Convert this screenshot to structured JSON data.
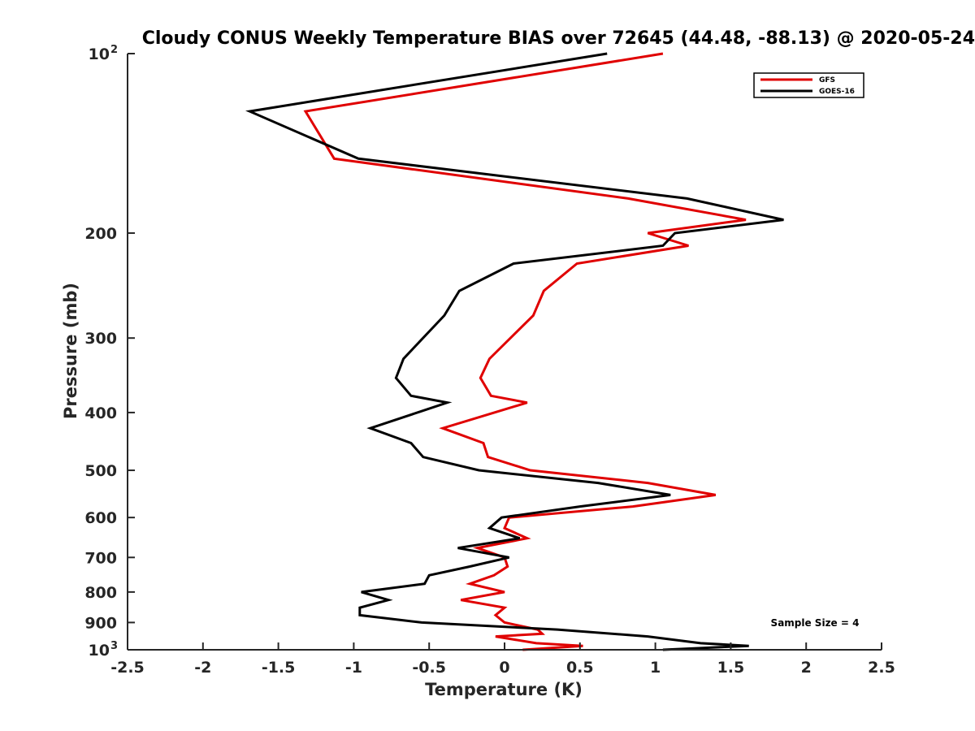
{
  "chart_data": {
    "type": "line",
    "title": "Cloudy CONUS Weekly Temperature BIAS over 72645 (44.48, -88.13) @ 2020-05-24",
    "xlabel": "Temperature (K)",
    "ylabel": "Pressure (mb)",
    "xlim": [
      -2.5,
      2.5
    ],
    "ylim": [
      100,
      1000
    ],
    "y_scale": "log",
    "y_reversed": true,
    "grid": false,
    "x_ticks": [
      "-2.5",
      "-2",
      "-1.5",
      "-1",
      "-0.5",
      "0",
      "0.5",
      "1",
      "1.5",
      "2",
      "2.5"
    ],
    "y_ticks": [
      {
        "label": "10",
        "sup": "2",
        "value": 100
      },
      {
        "label": "200",
        "value": 200
      },
      {
        "label": "300",
        "value": 300
      },
      {
        "label": "400",
        "value": 400
      },
      {
        "label": "500",
        "value": 500
      },
      {
        "label": "600",
        "value": 600
      },
      {
        "label": "700",
        "value": 700
      },
      {
        "label": "800",
        "value": 800
      },
      {
        "label": "900",
        "value": 900
      },
      {
        "label": "10",
        "sup": "3",
        "value": 1000
      }
    ],
    "legend_position": "top-right",
    "annotation": "Sample Size = 4",
    "series": [
      {
        "name": "GFS",
        "color": "#e00000",
        "points": [
          [
            1.05,
            100
          ],
          [
            -1.32,
            125
          ],
          [
            -1.13,
            150
          ],
          [
            0.82,
            175
          ],
          [
            1.6,
            190
          ],
          [
            0.95,
            200
          ],
          [
            1.22,
            210
          ],
          [
            0.48,
            225
          ],
          [
            0.26,
            250
          ],
          [
            0.19,
            275
          ],
          [
            -0.1,
            325
          ],
          [
            -0.16,
            350
          ],
          [
            -0.09,
            375
          ],
          [
            0.15,
            385
          ],
          [
            -0.41,
            425
          ],
          [
            -0.14,
            450
          ],
          [
            -0.11,
            475
          ],
          [
            0.17,
            500
          ],
          [
            0.95,
            525
          ],
          [
            1.4,
            550
          ],
          [
            0.85,
            575
          ],
          [
            0.03,
            600
          ],
          [
            0.0,
            625
          ],
          [
            0.15,
            650
          ],
          [
            -0.18,
            675
          ],
          [
            0.0,
            700
          ],
          [
            0.02,
            725
          ],
          [
            -0.07,
            750
          ],
          [
            -0.23,
            775
          ],
          [
            0.0,
            800
          ],
          [
            -0.29,
            825
          ],
          [
            0.0,
            850
          ],
          [
            -0.06,
            875
          ],
          [
            0.0,
            900
          ],
          [
            0.22,
            925
          ],
          [
            0.25,
            940
          ],
          [
            -0.06,
            950
          ],
          [
            0.21,
            975
          ],
          [
            0.52,
            985
          ],
          [
            0.12,
            1000
          ]
        ]
      },
      {
        "name": "GOES-16",
        "color": "#000000",
        "points": [
          [
            0.68,
            100
          ],
          [
            -1.69,
            125
          ],
          [
            -0.97,
            150
          ],
          [
            1.21,
            175
          ],
          [
            1.85,
            190
          ],
          [
            1.13,
            200
          ],
          [
            1.05,
            210
          ],
          [
            0.06,
            225
          ],
          [
            -0.3,
            250
          ],
          [
            -0.4,
            275
          ],
          [
            -0.67,
            325
          ],
          [
            -0.72,
            350
          ],
          [
            -0.62,
            375
          ],
          [
            -0.38,
            385
          ],
          [
            -0.89,
            425
          ],
          [
            -0.62,
            450
          ],
          [
            -0.54,
            475
          ],
          [
            -0.17,
            500
          ],
          [
            0.62,
            525
          ],
          [
            1.1,
            550
          ],
          [
            0.5,
            575
          ],
          [
            -0.02,
            600
          ],
          [
            -0.1,
            625
          ],
          [
            0.1,
            650
          ],
          [
            -0.31,
            675
          ],
          [
            0.03,
            700
          ],
          [
            -0.23,
            725
          ],
          [
            -0.5,
            750
          ],
          [
            -0.53,
            775
          ],
          [
            -0.95,
            800
          ],
          [
            -0.77,
            825
          ],
          [
            -0.96,
            850
          ],
          [
            -0.96,
            875
          ],
          [
            -0.55,
            900
          ],
          [
            0.35,
            925
          ],
          [
            0.95,
            950
          ],
          [
            1.3,
            975
          ],
          [
            1.62,
            985
          ],
          [
            1.05,
            1000
          ]
        ]
      }
    ]
  }
}
